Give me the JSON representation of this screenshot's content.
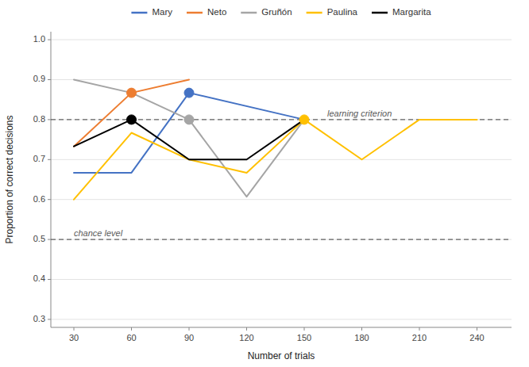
{
  "chart_data": {
    "type": "line",
    "xlabel": "Number of trials",
    "ylabel": "Proportion of correct decisions",
    "series": [
      {
        "name": "Mary",
        "color": "#4472C4",
        "x": [
          30,
          60,
          90,
          150
        ],
        "values": [
          0.667,
          0.667,
          0.867,
          0.8
        ],
        "circle_points": [
          90
        ]
      },
      {
        "name": "Neto",
        "color": "#ED7D31",
        "x": [
          30,
          60,
          90
        ],
        "values": [
          0.733,
          0.867,
          0.9
        ],
        "circle_points": [
          60
        ]
      },
      {
        "name": "Gruñón",
        "color": "#A5A5A5",
        "x": [
          30,
          60,
          90,
          120,
          150
        ],
        "values": [
          0.9,
          0.867,
          0.8,
          0.607,
          0.8
        ],
        "circle_points": [
          90
        ]
      },
      {
        "name": "Paulina",
        "color": "#FFC000",
        "x": [
          30,
          60,
          90,
          120,
          150,
          180,
          210,
          240
        ],
        "values": [
          0.6,
          0.767,
          0.7,
          0.667,
          0.8,
          0.7,
          0.8,
          0.8
        ],
        "circle_points": [
          150
        ]
      },
      {
        "name": "Margarita",
        "color": "#000000",
        "x": [
          30,
          60,
          90,
          120,
          150
        ],
        "values": [
          0.733,
          0.8,
          0.7,
          0.7,
          0.8
        ],
        "circle_points": [
          60
        ]
      }
    ],
    "reference_lines": [
      {
        "y": 0.8,
        "label": "learning criterion",
        "x": 162
      },
      {
        "y": 0.5,
        "label": "chance level",
        "x": 30
      }
    ],
    "xlim": [
      18,
      258
    ],
    "ylim": [
      0.28,
      1.02
    ],
    "xticks": [
      30,
      60,
      90,
      120,
      150,
      180,
      210,
      240
    ],
    "yticks": [
      0.3,
      0.4,
      0.5,
      0.6,
      0.7,
      0.8,
      0.9,
      {
        "value": 1.0,
        "label": "1.0"
      }
    ],
    "grid": true,
    "legend": "top"
  }
}
